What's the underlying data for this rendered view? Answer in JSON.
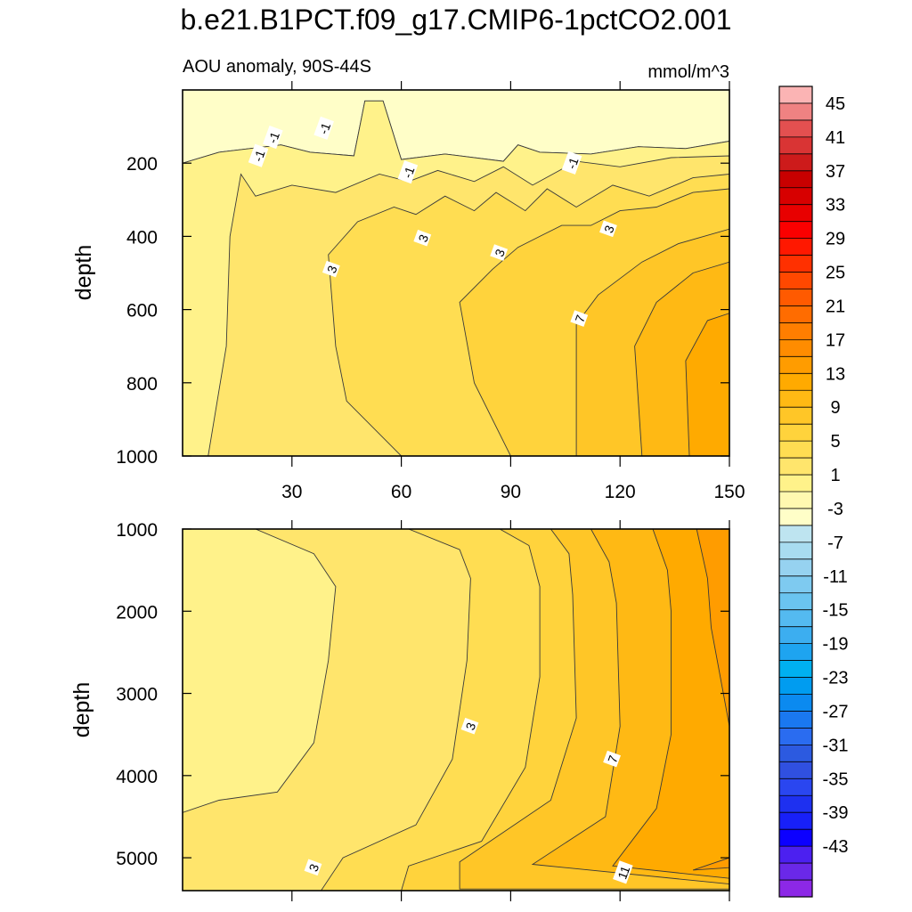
{
  "title": "b.e21.B1PCT.f09_g17.CMIP6-1pctCO2.001",
  "chart_data": {
    "type": "contour",
    "panel_label": "AOU anomaly, 90S-44S",
    "units": "mmol/m^3",
    "x_range": [
      0,
      150
    ],
    "x_ticks": [
      30,
      60,
      90,
      120,
      150
    ],
    "upper_panel": {
      "ylabel": "depth",
      "ylim": [
        0,
        1000
      ],
      "y_ticks": [
        200,
        400,
        600,
        800,
        1000
      ],
      "contour_labels": [
        {
          "text": "-1",
          "x": 25,
          "y": 130
        },
        {
          "text": "-1",
          "x": 39,
          "y": 105
        },
        {
          "text": "-1",
          "x": 21,
          "y": 180
        },
        {
          "text": "-1",
          "x": 62,
          "y": 225
        },
        {
          "text": "-1",
          "x": 107,
          "y": 200
        },
        {
          "text": "3",
          "x": 41,
          "y": 490
        },
        {
          "text": "3",
          "x": 66,
          "y": 405
        },
        {
          "text": "3",
          "x": 87,
          "y": 445
        },
        {
          "text": "3",
          "x": 117,
          "y": 380
        },
        {
          "text": "7",
          "x": 109,
          "y": 625
        }
      ],
      "fields": [
        {
          "level": -3,
          "pts": [
            [
              0,
              0
            ],
            [
              150,
              0
            ],
            [
              150,
              140
            ],
            [
              138,
              160
            ],
            [
              125,
              155
            ],
            [
              112,
              175
            ],
            [
              98,
              170
            ],
            [
              92,
              150
            ],
            [
              88,
              195
            ],
            [
              72,
              175
            ],
            [
              60,
              190
            ],
            [
              55,
              30
            ],
            [
              50,
              30
            ],
            [
              47,
              180
            ],
            [
              35,
              170
            ],
            [
              27,
              150
            ],
            [
              10,
              170
            ],
            [
              0,
              200
            ]
          ]
        },
        {
          "level": 1,
          "pts": [
            [
              0,
              200
            ],
            [
              10,
              170
            ],
            [
              27,
              150
            ],
            [
              35,
              170
            ],
            [
              47,
              180
            ],
            [
              50,
              30
            ],
            [
              55,
              30
            ],
            [
              60,
              190
            ],
            [
              72,
              175
            ],
            [
              88,
              195
            ],
            [
              92,
              150
            ],
            [
              98,
              170
            ],
            [
              112,
              175
            ],
            [
              125,
              155
            ],
            [
              138,
              160
            ],
            [
              150,
              140
            ],
            [
              150,
              1000
            ],
            [
              0,
              1000
            ]
          ]
        },
        {
          "level": 3,
          "pts": [
            [
              7,
              1000
            ],
            [
              12,
              700
            ],
            [
              13,
              400
            ],
            [
              16,
              230
            ],
            [
              20,
              290
            ],
            [
              30,
              260
            ],
            [
              42,
              280
            ],
            [
              54,
              230
            ],
            [
              62,
              250
            ],
            [
              70,
              220
            ],
            [
              80,
              250
            ],
            [
              88,
              210
            ],
            [
              96,
              260
            ],
            [
              108,
              195
            ],
            [
              120,
              210
            ],
            [
              134,
              185
            ],
            [
              150,
              180
            ],
            [
              150,
              1000
            ]
          ]
        },
        {
          "level": 5,
          "pts": [
            [
              60,
              1000
            ],
            [
              45,
              850
            ],
            [
              42,
              700
            ],
            [
              40,
              450
            ],
            [
              48,
              360
            ],
            [
              58,
              320
            ],
            [
              64,
              340
            ],
            [
              72,
              290
            ],
            [
              80,
              330
            ],
            [
              86,
              280
            ],
            [
              94,
              330
            ],
            [
              100,
              270
            ],
            [
              108,
              320
            ],
            [
              118,
              260
            ],
            [
              128,
              290
            ],
            [
              140,
              240
            ],
            [
              150,
              230
            ],
            [
              150,
              1000
            ]
          ]
        },
        {
          "level": 7,
          "pts": [
            [
              90,
              1000
            ],
            [
              80,
              800
            ],
            [
              76,
              580
            ],
            [
              85,
              490
            ],
            [
              92,
              430
            ],
            [
              98,
              400
            ],
            [
              104,
              370
            ],
            [
              112,
              370
            ],
            [
              120,
              330
            ],
            [
              130,
              320
            ],
            [
              140,
              280
            ],
            [
              150,
              270
            ],
            [
              150,
              1000
            ]
          ]
        },
        {
          "level": 9,
          "pts": [
            [
              108,
              1000
            ],
            [
              108,
              640
            ],
            [
              114,
              560
            ],
            [
              126,
              470
            ],
            [
              136,
              420
            ],
            [
              150,
              380
            ],
            [
              150,
              1000
            ]
          ]
        },
        {
          "level": 11,
          "pts": [
            [
              126,
              1000
            ],
            [
              124,
              700
            ],
            [
              130,
              580
            ],
            [
              140,
              500
            ],
            [
              150,
              470
            ],
            [
              150,
              1000
            ]
          ]
        },
        {
          "level": 13,
          "pts": [
            [
              139,
              1000
            ],
            [
              138,
              740
            ],
            [
              144,
              630
            ],
            [
              150,
              610
            ],
            [
              150,
              1000
            ]
          ]
        }
      ]
    },
    "lower_panel": {
      "ylabel": "depth",
      "ylim": [
        1000,
        5400
      ],
      "y_ticks": [
        1000,
        2000,
        3000,
        4000,
        5000
      ],
      "contour_labels": [
        {
          "text": "3",
          "x": 79,
          "y": 3400
        },
        {
          "text": "7",
          "x": 118,
          "y": 3800
        },
        {
          "text": "3",
          "x": 36,
          "y": 5120
        },
        {
          "text": "11",
          "x": 121,
          "y": 5180
        }
      ],
      "fields": [
        {
          "level": 1,
          "pts": [
            [
              0,
              1000
            ],
            [
              150,
              1000
            ],
            [
              150,
              5400
            ],
            [
              0,
              5400
            ]
          ]
        },
        {
          "level": 3,
          "pts": [
            [
              20,
              1000
            ],
            [
              36,
              1300
            ],
            [
              42,
              1700
            ],
            [
              40,
              2600
            ],
            [
              36,
              3600
            ],
            [
              26,
              4200
            ],
            [
              10,
              4300
            ],
            [
              0,
              4450
            ],
            [
              0,
              5400
            ],
            [
              150,
              5400
            ],
            [
              150,
              1000
            ]
          ]
        },
        {
          "level": 5,
          "pts": [
            [
              62,
              1000
            ],
            [
              76,
              1250
            ],
            [
              79,
              1600
            ],
            [
              78,
              2600
            ],
            [
              74,
              3800
            ],
            [
              64,
              4600
            ],
            [
              44,
              5000
            ],
            [
              38,
              5400
            ],
            [
              150,
              5400
            ],
            [
              150,
              1000
            ]
          ]
        },
        {
          "level": 7,
          "pts": [
            [
              87,
              1000
            ],
            [
              95,
              1200
            ],
            [
              98,
              1700
            ],
            [
              98,
              2800
            ],
            [
              94,
              3900
            ],
            [
              82,
              4800
            ],
            [
              62,
              5100
            ],
            [
              60,
              5400
            ],
            [
              150,
              5400
            ],
            [
              150,
              1000
            ]
          ]
        },
        {
          "level": 9,
          "pts": [
            [
              101,
              1000
            ],
            [
              106,
              1300
            ],
            [
              107,
              1800
            ],
            [
              108,
              3300
            ],
            [
              101,
              4300
            ],
            [
              76,
              5050
            ],
            [
              76,
              5380
            ],
            [
              150,
              5380
            ],
            [
              150,
              1000
            ]
          ]
        },
        {
          "level": 11,
          "pts": [
            [
              112,
              1000
            ],
            [
              117,
              1400
            ],
            [
              119,
              1900
            ],
            [
              120,
              3400
            ],
            [
              116,
              4500
            ],
            [
              96,
              5080
            ],
            [
              150,
              5320
            ],
            [
              150,
              1000
            ]
          ]
        },
        {
          "level": 13,
          "pts": [
            [
              129,
              1000
            ],
            [
              133,
              1500
            ],
            [
              134,
              2000
            ],
            [
              134,
              3500
            ],
            [
              130,
              4400
            ],
            [
              118,
              5100
            ],
            [
              150,
              5250
            ],
            [
              150,
              1000
            ]
          ]
        },
        {
          "level": 15,
          "pts": [
            [
              141,
              1000
            ],
            [
              144,
              1600
            ],
            [
              145,
              2200
            ],
            [
              150,
              3400
            ],
            [
              150,
              5000
            ],
            [
              140,
              5150
            ],
            [
              150,
              5120
            ],
            [
              150,
              1000
            ]
          ]
        }
      ]
    },
    "colorbar": {
      "labels": [
        "45",
        "41",
        "37",
        "33",
        "29",
        "25",
        "21",
        "17",
        "13",
        "9",
        "5",
        "1",
        "-3",
        "-7",
        "-11",
        "-15",
        "-19",
        "-23",
        "-27",
        "-31",
        "-35",
        "-39",
        "-43"
      ],
      "levels": [
        47,
        45,
        43,
        41,
        39,
        37,
        35,
        33,
        31,
        29,
        27,
        25,
        23,
        21,
        19,
        17,
        15,
        13,
        11,
        9,
        7,
        5,
        3,
        1,
        -1,
        -3,
        -5,
        -7,
        -9,
        -11,
        -13,
        -15,
        -17,
        -19,
        -21,
        -23,
        -25,
        -27,
        -29,
        -31,
        -33,
        -35,
        -37,
        -39,
        -41,
        -43,
        -45
      ],
      "colors": [
        "#fbb4b4",
        "#ef8282",
        "#e35050",
        "#d93434",
        "#cd1b1b",
        "#c80000",
        "#d70000",
        "#e80000",
        "#fb0000",
        "#ff1800",
        "#ff3000",
        "#ff4800",
        "#ff5a00",
        "#ff6c00",
        "#ff7e00",
        "#ff8c00",
        "#ff9c00",
        "#ffaa00",
        "#ffb914",
        "#ffc627",
        "#ffd33c",
        "#ffdd52",
        "#ffe56c",
        "#fff28a",
        "#fff8b0",
        "#fffec8",
        "#bee4f0",
        "#a8dcf0",
        "#96d2f0",
        "#7ecaf0",
        "#6ac4f0",
        "#54baf0",
        "#3caef0",
        "#1ea4f0",
        "#00b0f0",
        "#009cf0",
        "#0b8af0",
        "#1a78f0",
        "#2a6cf0",
        "#2c5ae0",
        "#3050e0",
        "#2a46f0",
        "#1e30f0",
        "#1820f8",
        "#0c00ff",
        "#4c20f0",
        "#6a28e8",
        "#8c28e6"
      ]
    }
  }
}
